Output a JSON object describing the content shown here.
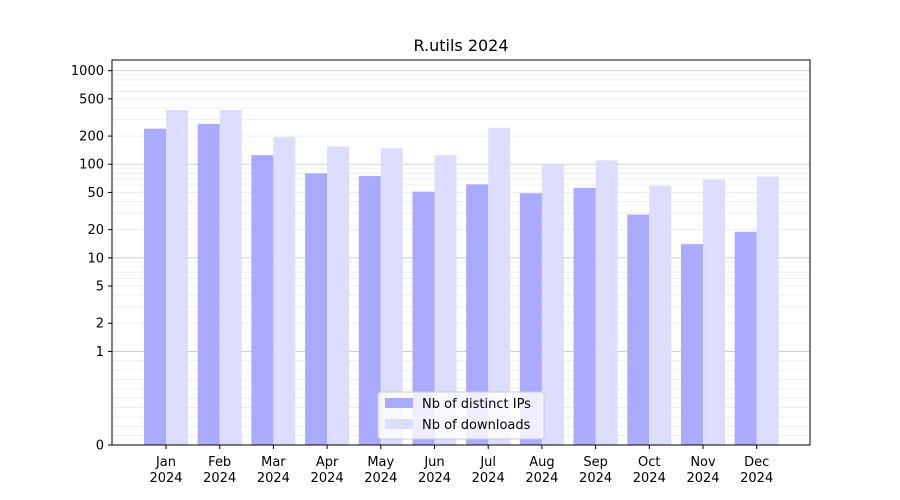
{
  "chart_data": {
    "type": "bar",
    "title": "R.utils 2024",
    "xlabel": "",
    "ylabel": "",
    "y_scale": "symlog",
    "ylim": [
      0,
      1300
    ],
    "y_ticks": [
      0,
      1,
      2,
      5,
      10,
      20,
      50,
      100,
      200,
      500,
      1000
    ],
    "grid": true,
    "legend_placement": "bottom-center",
    "categories": [
      [
        "Jan",
        "2024"
      ],
      [
        "Feb",
        "2024"
      ],
      [
        "Mar",
        "2024"
      ],
      [
        "Apr",
        "2024"
      ],
      [
        "May",
        "2024"
      ],
      [
        "Jun",
        "2024"
      ],
      [
        "Jul",
        "2024"
      ],
      [
        "Aug",
        "2024"
      ],
      [
        "Sep",
        "2024"
      ],
      [
        "Oct",
        "2024"
      ],
      [
        "Nov",
        "2024"
      ],
      [
        "Dec",
        "2024"
      ]
    ],
    "series": [
      {
        "name": "Nb of distinct IPs",
        "color": "#aaaaff",
        "values": [
          240,
          270,
          125,
          80,
          75,
          51,
          61,
          49,
          56,
          29,
          14,
          19
        ]
      },
      {
        "name": "Nb of downloads",
        "color": "#ddddff",
        "values": [
          380,
          380,
          195,
          155,
          148,
          125,
          245,
          100,
          110,
          59,
          69,
          74
        ]
      }
    ]
  }
}
